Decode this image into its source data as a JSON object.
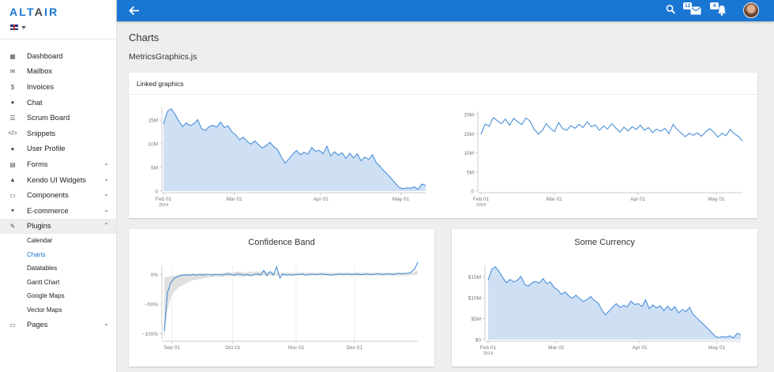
{
  "sidebar": {
    "logo_primary": "ALT",
    "logo_secondary": "A",
    "logo_tertiary": "IR",
    "items": [
      {
        "label": "Dashboard",
        "icon": "dashboard-icon",
        "glyph": "▦"
      },
      {
        "label": "Mailbox",
        "icon": "mail-icon",
        "glyph": "✉"
      },
      {
        "label": "Invoices",
        "icon": "dollar-icon",
        "glyph": "$"
      },
      {
        "label": "Chat",
        "icon": "chat-icon",
        "glyph": "●"
      },
      {
        "label": "Scrum Board",
        "icon": "board-icon",
        "glyph": "☰"
      },
      {
        "label": "Snippets",
        "icon": "code-icon",
        "glyph": "</>"
      },
      {
        "label": "User Profile",
        "icon": "user-icon",
        "glyph": "●"
      },
      {
        "label": "Forms",
        "icon": "forms-icon",
        "glyph": "▤",
        "chevron": "⌄"
      },
      {
        "label": "Kendo UI Widgets",
        "icon": "flask-icon",
        "glyph": "▲",
        "chevron": "⌄"
      },
      {
        "label": "Components",
        "icon": "keyboard-icon",
        "glyph": "▭",
        "chevron": "⌄"
      },
      {
        "label": "E-commerce",
        "icon": "cart-icon",
        "glyph": "▾",
        "chevron": "⌄"
      },
      {
        "label": "Plugins",
        "icon": "plug-icon",
        "glyph": "✎",
        "chevron": "⌃"
      }
    ],
    "subitems": [
      "Calendar",
      "Charts",
      "Datatables",
      "Gantt Chart",
      "Google Maps",
      "Vector Maps"
    ],
    "last_item": {
      "label": "Pages",
      "icon": "folder-icon",
      "glyph": "▭",
      "chevron": "⌄"
    }
  },
  "topbar": {
    "mail_badge": "12",
    "notif_badge": "4"
  },
  "page": {
    "title": "Charts",
    "section": "MetricsGraphics.js"
  },
  "card1": {
    "heading": "Linked graphics"
  },
  "chart_data": [
    {
      "type": "area",
      "ylim": [
        0,
        17000000
      ],
      "y_ticks": [
        "0",
        "5M",
        "10M",
        "15M"
      ],
      "x_ticks": [
        "Feb 01",
        "Mar 01",
        "Apr 01",
        "May 01"
      ],
      "x_subtick": "2014",
      "values": [
        14.2,
        16.8,
        17.4,
        16.3,
        14.8,
        13.6,
        14.4,
        13.8,
        14.2,
        15.1,
        13.2,
        12.8,
        13.6,
        13.9,
        13.5,
        14.6,
        13.4,
        13.8,
        12.5,
        11.9,
        10.8,
        11.4,
        10.5,
        9.9,
        10.6,
        9.8,
        9.1,
        9.6,
        10.3,
        9.4,
        8.8,
        7.2,
        5.9,
        6.8,
        7.8,
        8.6,
        7.7,
        8.2,
        7.8,
        9.2,
        8.4,
        8.6,
        7.9,
        9.5,
        7.4,
        8.3,
        7.6,
        8.1,
        6.9,
        8.0,
        7.0,
        7.9,
        6.4,
        7.2,
        6.7,
        7.7,
        6.0,
        5.2,
        4.3,
        3.5,
        2.6,
        1.7,
        0.8,
        0.5,
        0.7,
        0.6,
        0.9,
        0.4,
        1.5,
        1.2
      ]
    },
    {
      "type": "line",
      "ylim": [
        0,
        20000000
      ],
      "y_ticks": [
        "0",
        "5M",
        "10M",
        "15M",
        "20M"
      ],
      "x_ticks": [
        "Feb 01",
        "Mar 01",
        "Apr 01",
        "May 01"
      ],
      "x_subtick": "2014",
      "values": [
        14.8,
        17.5,
        16.9,
        19.2,
        18.4,
        17.6,
        18.8,
        17.2,
        19.0,
        18.1,
        17.4,
        19.1,
        18.3,
        16.2,
        14.9,
        15.8,
        17.6,
        16.4,
        15.5,
        17.9,
        16.3,
        15.9,
        17.1,
        16.4,
        17.4,
        16.6,
        18.1,
        16.8,
        17.3,
        15.9,
        17.0,
        16.2,
        17.6,
        16.5,
        15.4,
        16.7,
        15.7,
        16.8,
        16.1,
        17.2,
        15.9,
        16.6,
        15.3,
        16.2,
        15.6,
        16.4,
        15.0,
        17.4,
        16.1,
        15.2,
        14.2,
        15.1,
        14.6,
        15.2,
        14.3,
        15.5,
        16.3,
        15.4,
        14.1,
        15.1,
        14.5,
        16.1,
        15.0,
        14.3,
        13.1
      ]
    },
    {
      "type": "line",
      "title": "Confidence Band",
      "ylim": [
        -110,
        10
      ],
      "y_ticks": [
        "0%",
        "−50%",
        "−100%"
      ],
      "x_ticks": [
        "Sep 01",
        "Oct 01",
        "Nov 01",
        "Dec 01"
      ],
      "values": [
        -95,
        -30,
        -14,
        -7,
        -4,
        -2,
        -1,
        -1,
        -1,
        0,
        -1,
        0,
        -1,
        0,
        0,
        -1,
        0,
        0,
        -1,
        0,
        1,
        0,
        -1,
        1,
        0,
        -1,
        0,
        -2,
        0,
        1,
        -1,
        7,
        -2,
        5,
        -1,
        13,
        -6,
        1,
        -1,
        0,
        -1,
        0,
        0,
        1,
        -1,
        0,
        1,
        0,
        0,
        1,
        0,
        0,
        -1,
        0,
        0,
        1,
        0,
        1,
        0,
        0,
        1,
        0,
        0,
        1,
        0,
        0,
        1,
        1,
        0,
        1,
        1,
        0,
        1,
        2,
        1,
        2,
        2,
        4,
        9,
        21
      ],
      "band_upper": [
        -5,
        -4,
        -3,
        -2,
        -1,
        0,
        1,
        2,
        1,
        2,
        1,
        2,
        2,
        2,
        1,
        2,
        2,
        1,
        2,
        3,
        4,
        3,
        4,
        5,
        4,
        4,
        3,
        5,
        4,
        5,
        5,
        6,
        5,
        4,
        4,
        3,
        3,
        3,
        3,
        3,
        3,
        3,
        3,
        3,
        3,
        3,
        3,
        3,
        3,
        3,
        3,
        3,
        3,
        3,
        3,
        3,
        3,
        3,
        3,
        3,
        3,
        3,
        3,
        3,
        3,
        3,
        3,
        3,
        3,
        3,
        3,
        3,
        3,
        3,
        3,
        3,
        3,
        3,
        3,
        4,
        7
      ],
      "band_lower": [
        -110,
        -60,
        -40,
        -30,
        -25,
        -20,
        -18,
        -15,
        -12,
        -10,
        -9,
        -8,
        -7,
        -6,
        -5,
        -5,
        -4,
        -4,
        -4,
        -3,
        -3,
        -3,
        -3,
        -3,
        -4,
        -4,
        -3,
        -3,
        -3,
        -2,
        -2,
        -2,
        -2,
        -2,
        -2,
        -2,
        -2,
        -2,
        -2,
        -2,
        -2,
        -2,
        -2,
        -2,
        -2,
        -2,
        -2,
        -2,
        -2,
        -2,
        -2,
        -2,
        -2,
        -2,
        -2,
        -2,
        -2,
        -2,
        -2,
        -2,
        -2,
        -2,
        -2,
        -2,
        -2,
        -2,
        -2,
        -2,
        -2,
        -2,
        -2,
        -2,
        -2,
        -2,
        -2,
        -2,
        -2,
        -2,
        -1,
        -1,
        0
      ]
    },
    {
      "type": "area",
      "title": "Some Currency",
      "ylim": [
        0,
        17000000
      ],
      "y_ticks": [
        "$0",
        "$5M",
        "$10M",
        "$15M"
      ],
      "x_ticks": [
        "Feb 01",
        "Mar 01",
        "Apr 01",
        "May 01"
      ],
      "x_subtick": "2014",
      "values": [
        14.2,
        16.8,
        17.4,
        16.3,
        14.8,
        13.6,
        14.4,
        13.8,
        14.2,
        15.1,
        13.2,
        12.8,
        13.6,
        13.9,
        13.5,
        14.6,
        13.4,
        13.8,
        12.5,
        11.9,
        10.8,
        11.4,
        10.5,
        9.9,
        10.6,
        9.8,
        9.1,
        9.6,
        10.3,
        9.4,
        8.8,
        7.2,
        5.9,
        6.8,
        7.8,
        8.6,
        7.7,
        8.2,
        7.8,
        9.2,
        8.4,
        8.6,
        7.9,
        9.5,
        7.4,
        8.3,
        7.6,
        8.1,
        6.9,
        8.0,
        7.0,
        7.9,
        6.4,
        7.2,
        6.7,
        7.7,
        6.0,
        5.2,
        4.3,
        3.5,
        2.6,
        1.7,
        0.8,
        0.5,
        0.7,
        0.6,
        0.9,
        0.4,
        1.5,
        1.2
      ]
    }
  ]
}
